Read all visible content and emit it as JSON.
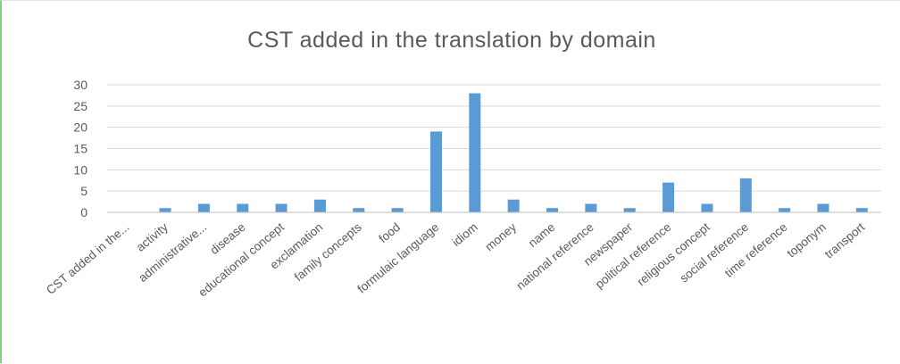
{
  "chart_data": {
    "type": "bar",
    "title": "CST added in the translation by domain",
    "xlabel": "",
    "ylabel": "",
    "ylim": [
      0,
      30
    ],
    "yticks": [
      0,
      5,
      10,
      15,
      20,
      25,
      30
    ],
    "grid": true,
    "legend": "none",
    "bar_color": "#5b9bd5",
    "categories": [
      "CST added in the...",
      "activity",
      "administrative...",
      "disease",
      "educational concept",
      "exclamation",
      "family concepts",
      "food",
      "formulaic language",
      "idiom",
      "money",
      "name",
      "national reference",
      "newspaper",
      "political reference",
      "religious concept",
      "social reference",
      "time reference",
      "toponym",
      "transport"
    ],
    "values": [
      0,
      1,
      2,
      2,
      2,
      3,
      1,
      1,
      19,
      28,
      3,
      1,
      2,
      1,
      7,
      2,
      8,
      1,
      2,
      1
    ]
  }
}
